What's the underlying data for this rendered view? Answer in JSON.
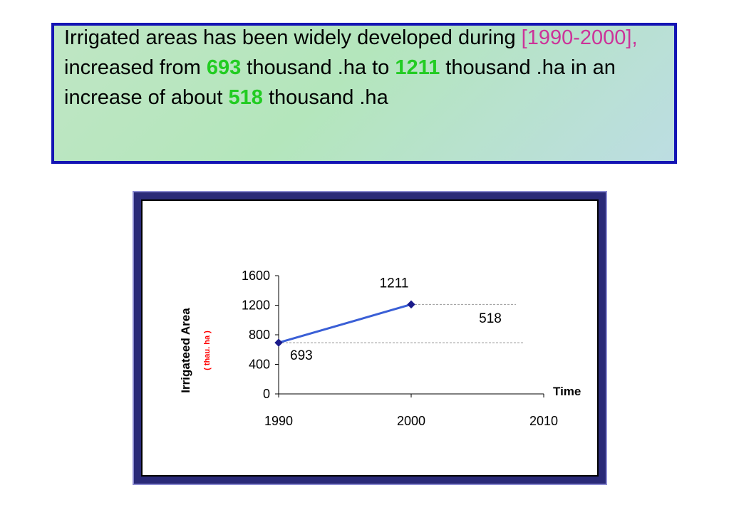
{
  "headline": {
    "part1": "Irrigated areas has been widely developed during ",
    "range": "[1990-2000],",
    "part2": " increased from ",
    "from_value": "693",
    "part3": " thousand .ha to ",
    "to_value": "1211",
    "part4": " thousand .ha   in an increase of about ",
    "increase_value": "518",
    "part5": " thousand .ha"
  },
  "colors": {
    "accent_range": "#cc3399",
    "accent_number": "#22cc22",
    "box_border": "#1414b4",
    "line": "#3a5fd6",
    "marker": "#1a1a8a"
  },
  "chart_data": {
    "type": "line",
    "x": [
      1990,
      2000
    ],
    "series": [
      {
        "values": [
          693,
          1211
        ]
      }
    ],
    "xlim": [
      1990,
      2010
    ],
    "ylim": [
      0,
      1600
    ],
    "x_ticks": [
      1990,
      2000,
      2010
    ],
    "y_ticks": [
      0,
      400,
      800,
      1200,
      1600
    ],
    "xlabel": "Time",
    "ylabel": "Irrigateed Area",
    "ylabel_unit": "( thau. ha )",
    "annotations": [
      {
        "text": "1211"
      },
      {
        "text": "693"
      },
      {
        "text": "518"
      }
    ],
    "grid": false
  }
}
